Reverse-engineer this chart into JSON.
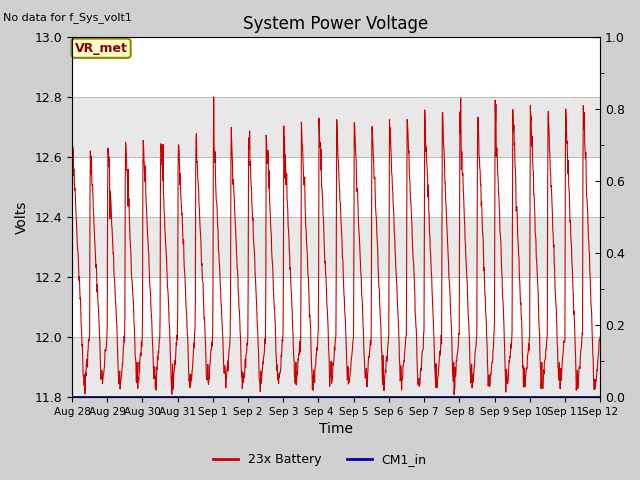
{
  "title": "System Power Voltage",
  "top_left_note": "No data for f_Sys_volt1",
  "ylabel_left": "Volts",
  "xlabel": "Time",
  "ylim_left": [
    11.8,
    13.0
  ],
  "ylim_right": [
    0.0,
    1.0
  ],
  "yticks_left": [
    11.8,
    12.0,
    12.2,
    12.4,
    12.6,
    12.8,
    13.0
  ],
  "yticks_right": [
    0.0,
    0.2,
    0.4,
    0.6,
    0.8,
    1.0
  ],
  "xtick_labels": [
    "Aug 28",
    "Aug 29",
    "Aug 30",
    "Aug 31",
    "Sep 1",
    "Sep 2",
    "Sep 3",
    "Sep 4",
    "Sep 5",
    "Sep 6",
    "Sep 7",
    "Sep 8",
    "Sep 9",
    "Sep 10",
    "Sep 11",
    "Sep 12"
  ],
  "fig_bg_color": "#d0d0d0",
  "plot_bg_color": "#ffffff",
  "line_color_battery": "#cc0000",
  "line_color_cm1": "#0000bb",
  "legend_battery": "23x Battery",
  "legend_cm1": "CM1_in",
  "vr_met_label": "VR_met",
  "vr_met_bg": "#ffffcc",
  "vr_met_border": "#888800",
  "num_days": 15,
  "band_colors": [
    "#e8e8e8",
    "#ffffff"
  ],
  "seed": 7
}
